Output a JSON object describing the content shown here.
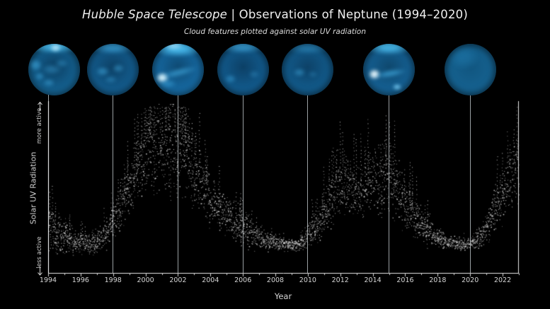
{
  "header": {
    "title_italic": "Hubble Space Telescope",
    "title_rest": " | Observations of Neptune (1994–2020)",
    "subtitle": "Cloud features plotted against solar UV radiation"
  },
  "colors": {
    "background": "#000000",
    "scatter_point": "#dadada",
    "marker_line": "#9aa0a3",
    "axis": "#e8e8e8",
    "tick_label": "#d6d6d6",
    "title": "#f0f0f0",
    "neptune_blue": "#1668a0"
  },
  "chart_data": {
    "type": "scatter",
    "xlabel": "Year",
    "ylabel": "Solar UV Radiation",
    "y_annotation_top": "more active",
    "y_annotation_bottom": "less active",
    "x_tick_labels": [
      "1994",
      "1996",
      "1998",
      "2000",
      "2002",
      "2004",
      "2006",
      "2008",
      "2010",
      "2012",
      "2014",
      "2016",
      "2018",
      "2020",
      "2022"
    ],
    "x_range": [
      1994,
      2023
    ],
    "y_axis_units": "relative solar UV activity (unlabeled axis, 0 = less active, 1 = more active)",
    "grid": "vertical marker lines at Neptune image epochs only",
    "legend": "none",
    "marker_years": [
      1994,
      1998,
      2002,
      2006,
      2010,
      2015,
      2020
    ],
    "envelope_columns": [
      "year",
      "mean_activity",
      "spread"
    ],
    "envelope": [
      [
        1994.0,
        0.16,
        0.13
      ],
      [
        1994.3,
        0.13,
        0.11
      ],
      [
        1994.6,
        0.11,
        0.1
      ],
      [
        1995.0,
        0.09,
        0.08
      ],
      [
        1995.4,
        0.07,
        0.07
      ],
      [
        1995.8,
        0.055,
        0.06
      ],
      [
        1996.2,
        0.045,
        0.05
      ],
      [
        1996.6,
        0.04,
        0.05
      ],
      [
        1997.0,
        0.055,
        0.06
      ],
      [
        1997.4,
        0.09,
        0.07
      ],
      [
        1997.8,
        0.15,
        0.09
      ],
      [
        1998.2,
        0.24,
        0.11
      ],
      [
        1998.6,
        0.33,
        0.12
      ],
      [
        1999.0,
        0.42,
        0.13
      ],
      [
        1999.4,
        0.52,
        0.15
      ],
      [
        1999.8,
        0.62,
        0.18
      ],
      [
        2000.2,
        0.68,
        0.2
      ],
      [
        2000.6,
        0.7,
        0.21
      ],
      [
        2001.0,
        0.71,
        0.23
      ],
      [
        2001.4,
        0.73,
        0.23
      ],
      [
        2001.8,
        0.72,
        0.23
      ],
      [
        2002.2,
        0.71,
        0.22
      ],
      [
        2002.6,
        0.63,
        0.2
      ],
      [
        2003.0,
        0.52,
        0.17
      ],
      [
        2003.4,
        0.46,
        0.15
      ],
      [
        2003.8,
        0.38,
        0.14
      ],
      [
        2004.2,
        0.31,
        0.12
      ],
      [
        2004.6,
        0.27,
        0.11
      ],
      [
        2005.0,
        0.22,
        0.1
      ],
      [
        2005.4,
        0.19,
        0.09
      ],
      [
        2005.8,
        0.16,
        0.09
      ],
      [
        2006.2,
        0.14,
        0.08
      ],
      [
        2006.6,
        0.11,
        0.07
      ],
      [
        2007.0,
        0.085,
        0.06
      ],
      [
        2007.4,
        0.065,
        0.05
      ],
      [
        2007.8,
        0.05,
        0.04
      ],
      [
        2008.2,
        0.04,
        0.035
      ],
      [
        2008.6,
        0.033,
        0.03
      ],
      [
        2009.0,
        0.03,
        0.03
      ],
      [
        2009.4,
        0.035,
        0.035
      ],
      [
        2009.8,
        0.06,
        0.05
      ],
      [
        2010.2,
        0.13,
        0.07
      ],
      [
        2010.6,
        0.17,
        0.08
      ],
      [
        2011.0,
        0.25,
        0.11
      ],
      [
        2011.4,
        0.35,
        0.14
      ],
      [
        2011.8,
        0.44,
        0.15
      ],
      [
        2012.2,
        0.46,
        0.15
      ],
      [
        2012.6,
        0.42,
        0.14
      ],
      [
        2013.0,
        0.38,
        0.14
      ],
      [
        2013.4,
        0.42,
        0.15
      ],
      [
        2013.8,
        0.47,
        0.16
      ],
      [
        2014.2,
        0.5,
        0.17
      ],
      [
        2014.6,
        0.48,
        0.16
      ],
      [
        2015.0,
        0.49,
        0.17
      ],
      [
        2015.4,
        0.43,
        0.15
      ],
      [
        2015.8,
        0.35,
        0.13
      ],
      [
        2016.2,
        0.28,
        0.12
      ],
      [
        2016.6,
        0.22,
        0.1
      ],
      [
        2017.0,
        0.17,
        0.09
      ],
      [
        2017.4,
        0.13,
        0.08
      ],
      [
        2017.8,
        0.09,
        0.06
      ],
      [
        2018.2,
        0.065,
        0.05
      ],
      [
        2018.6,
        0.05,
        0.04
      ],
      [
        2019.0,
        0.04,
        0.035
      ],
      [
        2019.4,
        0.035,
        0.03
      ],
      [
        2019.8,
        0.035,
        0.03
      ],
      [
        2020.2,
        0.05,
        0.04
      ],
      [
        2020.6,
        0.08,
        0.05
      ],
      [
        2021.0,
        0.15,
        0.08
      ],
      [
        2021.4,
        0.24,
        0.11
      ],
      [
        2021.8,
        0.33,
        0.13
      ],
      [
        2022.2,
        0.44,
        0.15
      ],
      [
        2022.6,
        0.54,
        0.17
      ],
      [
        2023.0,
        0.56,
        0.18
      ]
    ]
  },
  "neptune_images": [
    {
      "name": "neptune-image-1994",
      "year": 1994,
      "base": {
        "core": "#0c3f63",
        "mid": "#14608f",
        "edge": "#1f7fb8"
      },
      "features": [
        [
          50,
          6,
          48,
          14,
          [
            80,
            200,
            250,
            0.75
          ]
        ],
        [
          53,
          8,
          12,
          9,
          [
            190,
            235,
            255,
            0.8
          ]
        ],
        [
          14,
          42,
          13,
          12,
          [
            70,
            180,
            235,
            0.5
          ]
        ],
        [
          46,
          50,
          20,
          11,
          [
            60,
            165,
            220,
            0.4
          ]
        ],
        [
          64,
          38,
          14,
          9,
          [
            60,
            165,
            220,
            0.35
          ]
        ],
        [
          40,
          76,
          12,
          8,
          [
            70,
            180,
            235,
            0.4
          ]
        ],
        [
          22,
          64,
          10,
          8,
          [
            70,
            180,
            235,
            0.4
          ]
        ]
      ]
    },
    {
      "name": "neptune-image-1998",
      "year": 1998,
      "base": {
        "core": "#0d4166",
        "mid": "#135b8c",
        "edge": "#1b6fa6"
      },
      "features": [
        [
          50,
          8,
          42,
          13,
          [
            70,
            180,
            235,
            0.55
          ]
        ],
        [
          30,
          54,
          14,
          10,
          [
            70,
            180,
            235,
            0.45
          ]
        ],
        [
          60,
          48,
          13,
          9,
          [
            70,
            180,
            235,
            0.4
          ]
        ],
        [
          46,
          70,
          13,
          8,
          [
            60,
            165,
            220,
            0.35
          ]
        ]
      ]
    },
    {
      "name": "neptune-image-2002",
      "year": 2002,
      "base": {
        "core": "#0e4a73",
        "mid": "#1668a0",
        "edge": "#2286c4"
      },
      "features": [
        [
          50,
          10,
          50,
          17,
          [
            80,
            200,
            250,
            0.8
          ]
        ],
        [
          42,
          5,
          20,
          8,
          [
            170,
            228,
            255,
            0.65
          ]
        ],
        [
          20,
          66,
          13,
          11,
          [
            225,
            248,
            255,
            0.95
          ]
        ],
        [
          52,
          56,
          38,
          9,
          [
            70,
            180,
            235,
            0.5
          ],
          -14
        ],
        [
          30,
          78,
          18,
          9,
          [
            60,
            165,
            220,
            0.45
          ]
        ]
      ]
    },
    {
      "name": "neptune-image-2006",
      "year": 2006,
      "base": {
        "core": "#0c4066",
        "mid": "#125a8c",
        "edge": "#1a6da5"
      },
      "features": [
        [
          50,
          7,
          44,
          13,
          [
            70,
            180,
            235,
            0.6
          ]
        ],
        [
          26,
          68,
          12,
          9,
          [
            60,
            165,
            220,
            0.45
          ]
        ],
        [
          72,
          60,
          11,
          8,
          [
            55,
            150,
            205,
            0.35
          ]
        ]
      ]
    },
    {
      "name": "neptune-image-2010",
      "year": 2010,
      "base": {
        "core": "#0d4268",
        "mid": "#125a8a",
        "edge": "#196aa0"
      },
      "features": [
        [
          50,
          9,
          42,
          12,
          [
            60,
            165,
            220,
            0.4
          ]
        ],
        [
          34,
          56,
          12,
          9,
          [
            70,
            180,
            235,
            0.4
          ]
        ],
        [
          60,
          60,
          10,
          7,
          [
            55,
            150,
            205,
            0.3
          ]
        ]
      ]
    },
    {
      "name": "neptune-image-2015",
      "year": 2015,
      "base": {
        "core": "#0e486e",
        "mid": "#156093",
        "edge": "#1f7ab2"
      },
      "features": [
        [
          50,
          8,
          46,
          15,
          [
            80,
            200,
            250,
            0.75
          ]
        ],
        [
          22,
          60,
          12,
          11,
          [
            235,
            250,
            255,
            0.95
          ]
        ],
        [
          52,
          58,
          32,
          8,
          [
            70,
            180,
            235,
            0.55
          ],
          -10
        ],
        [
          66,
          84,
          10,
          7,
          [
            130,
            215,
            255,
            0.75
          ]
        ]
      ]
    },
    {
      "name": "neptune-image-2020",
      "year": 2020,
      "base": {
        "core": "#115680",
        "mid": "#15618f",
        "edge": "#17689a"
      },
      "features": [
        [
          38,
          28,
          30,
          24,
          [
            40,
            140,
            195,
            0.3
          ]
        ]
      ]
    }
  ]
}
